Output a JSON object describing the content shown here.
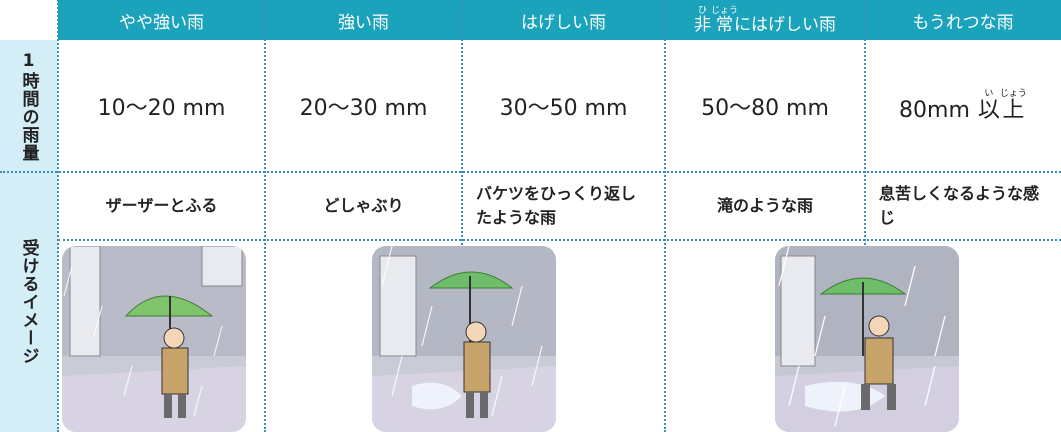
{
  "table": {
    "header": [
      {
        "text": "やや強い雨"
      },
      {
        "text": "強い雨"
      },
      {
        "text": "はげしい雨"
      },
      {
        "ruby_base": [
          "非",
          "常"
        ],
        "ruby": [
          "ひ",
          "じょう"
        ],
        "text": "にはげしい雨"
      },
      {
        "text": "もうれつな雨"
      }
    ],
    "row_labels": [
      "1時間の雨量",
      "受けるイメージ"
    ],
    "amounts": [
      {
        "text": "10〜20 mm"
      },
      {
        "text": "20〜30 mm"
      },
      {
        "text": "30〜50 mm"
      },
      {
        "text": "50〜80 mm"
      },
      {
        "text": "80mm",
        "ruby_base": [
          "以",
          "上"
        ],
        "ruby": [
          "い",
          "じょう"
        ]
      }
    ],
    "impressions": [
      "ザーザーとふる",
      "どしゃぶり",
      "バケツをひっくり返したような雨",
      "滝のような雨",
      "息苦しくなるような感じ"
    ]
  }
}
